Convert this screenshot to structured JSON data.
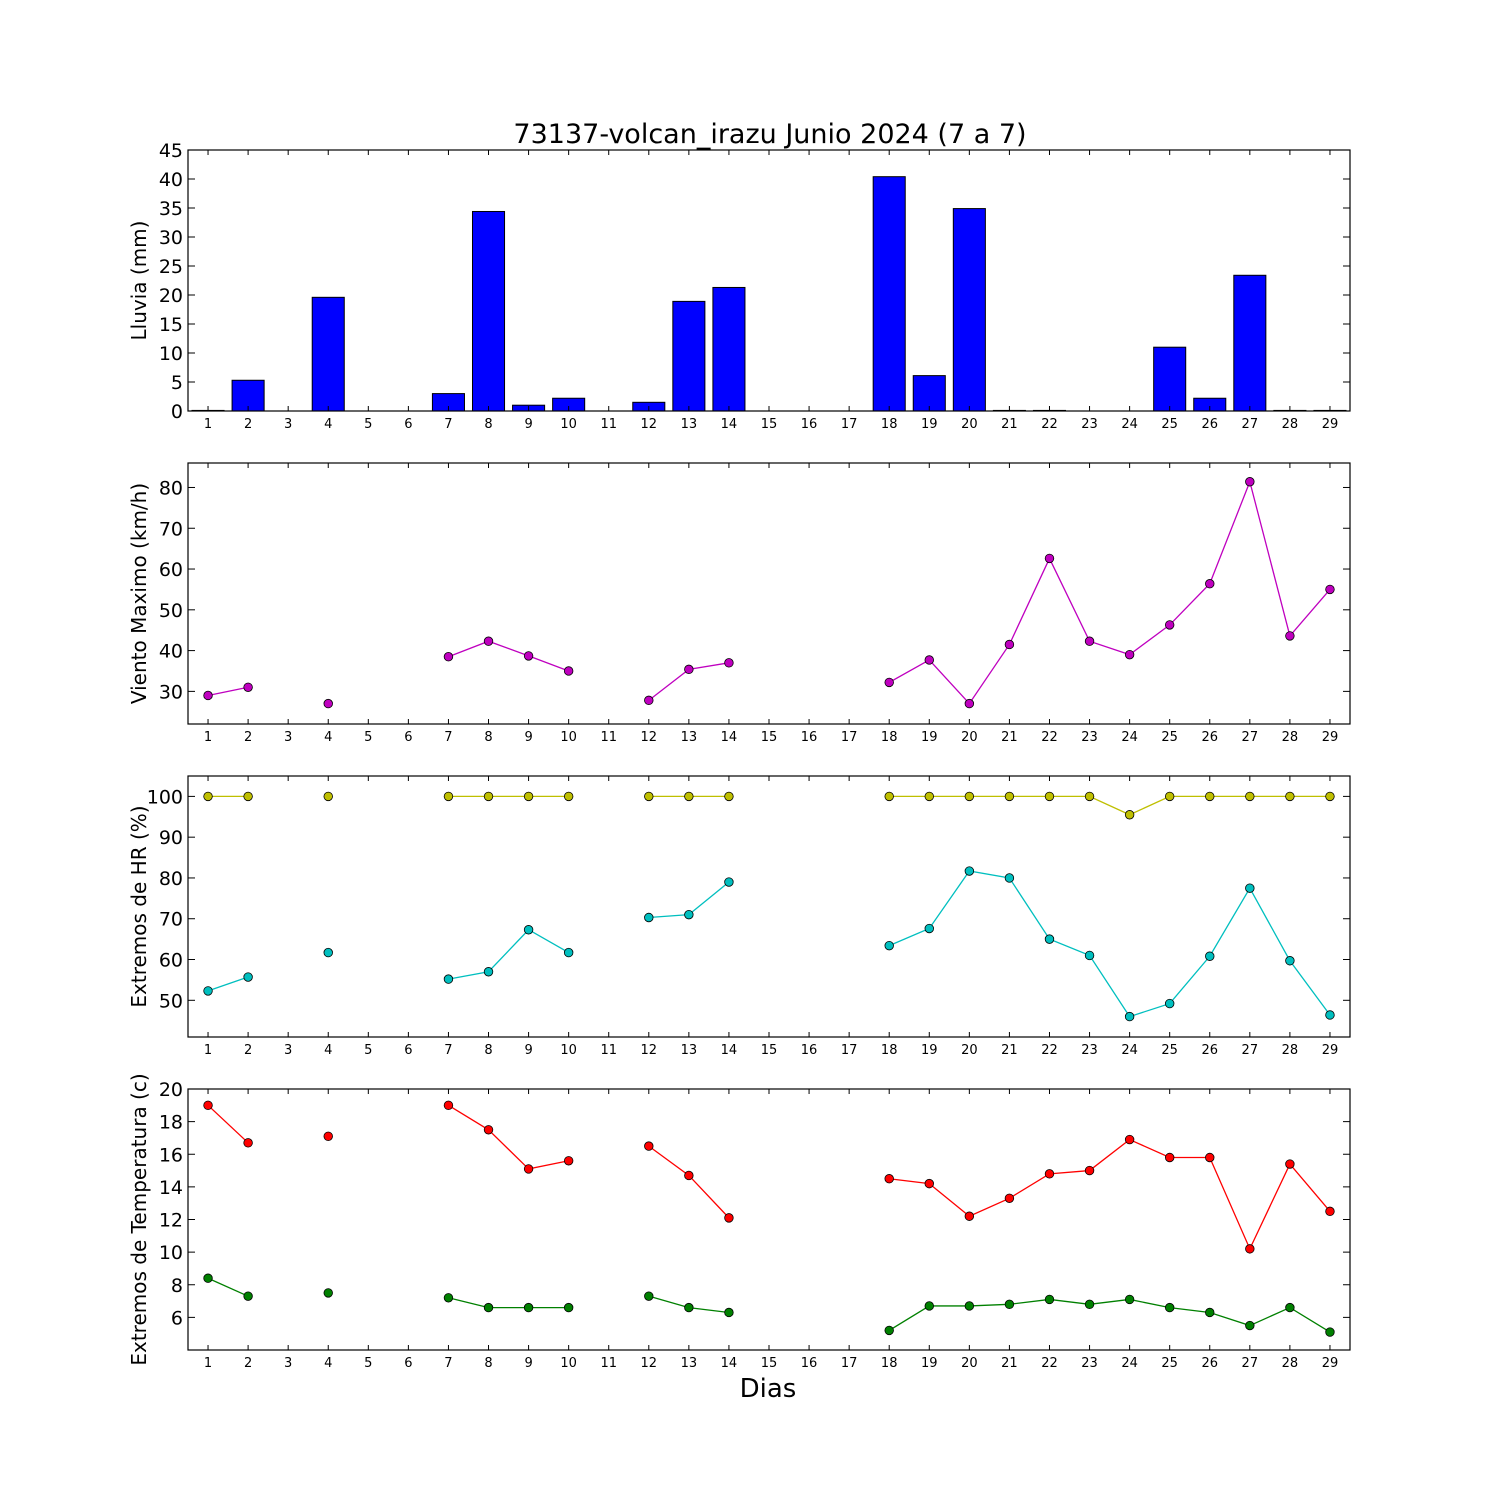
{
  "chart_data": {
    "type": "multi-panel",
    "title": "73137-volcan_irazu Junio 2024  (7 a 7)",
    "xlabel": "Dias",
    "x": [
      1,
      2,
      3,
      4,
      5,
      6,
      7,
      8,
      9,
      10,
      11,
      12,
      13,
      14,
      15,
      16,
      17,
      18,
      19,
      20,
      21,
      22,
      23,
      24,
      25,
      26,
      27,
      28,
      29
    ],
    "panels": [
      {
        "type": "bar",
        "ylabel": "Lluvia (mm)",
        "ylim": [
          0,
          45
        ],
        "yticks": [
          0,
          5,
          10,
          15,
          20,
          25,
          30,
          35,
          40,
          45
        ],
        "series": [
          {
            "color": "#0000ff",
            "values": [
              0.1,
              5.3,
              0,
              19.6,
              0,
              0,
              3.0,
              34.4,
              1.0,
              2.2,
              0,
              1.5,
              18.9,
              21.3,
              0,
              0,
              0,
              40.4,
              6.1,
              34.9,
              0.1,
              0.1,
              0,
              0,
              11.0,
              2.2,
              23.4,
              0.1,
              0.1
            ]
          }
        ]
      },
      {
        "type": "line",
        "ylabel": "Viento Maximo (km/h)",
        "ylim": [
          22,
          86
        ],
        "yticks": [
          30,
          40,
          50,
          60,
          70,
          80
        ],
        "series": [
          {
            "color": "#bf00bf",
            "values": [
              29,
              31,
              null,
              27,
              null,
              null,
              38.5,
              42.3,
              38.7,
              35,
              null,
              27.8,
              35.4,
              37,
              null,
              null,
              null,
              32.2,
              37.7,
              27,
              41.5,
              62.6,
              42.3,
              39,
              46.3,
              56.4,
              81.4,
              43.6,
              55
            ]
          }
        ]
      },
      {
        "type": "line",
        "ylabel": "Extremos de HR (%)",
        "ylim": [
          41,
          105
        ],
        "yticks": [
          50,
          60,
          70,
          80,
          90,
          100
        ],
        "series": [
          {
            "color": "#bfbf00",
            "values": [
              100,
              100,
              null,
              100,
              null,
              null,
              100,
              100,
              100,
              100,
              null,
              100,
              100,
              100,
              null,
              null,
              null,
              100,
              100,
              100,
              100,
              100,
              100,
              95.5,
              100,
              100,
              100,
              100,
              100
            ]
          },
          {
            "color": "#00bfbf",
            "values": [
              52.3,
              55.7,
              null,
              61.7,
              null,
              null,
              55.2,
              57,
              67.3,
              61.7,
              null,
              70.3,
              71,
              79,
              null,
              null,
              null,
              63.4,
              67.6,
              81.7,
              80,
              65,
              61,
              46,
              49.2,
              60.8,
              77.5,
              59.7,
              46.4
            ]
          }
        ]
      },
      {
        "type": "line",
        "ylabel": "Extremos de Temperatura (c)",
        "ylim": [
          4,
          20
        ],
        "yticks": [
          6,
          8,
          10,
          12,
          14,
          16,
          18,
          20
        ],
        "series": [
          {
            "color": "#ff0000",
            "values": [
              19,
              16.7,
              null,
              17.1,
              null,
              null,
              19,
              17.5,
              15.1,
              15.6,
              null,
              16.5,
              14.7,
              12.1,
              null,
              null,
              null,
              14.5,
              14.2,
              12.2,
              13.3,
              14.8,
              15,
              16.9,
              15.8,
              15.8,
              10.2,
              15.4,
              12.5
            ]
          },
          {
            "color": "#008000",
            "values": [
              8.4,
              7.3,
              null,
              7.5,
              null,
              null,
              7.2,
              6.6,
              6.6,
              6.6,
              null,
              7.3,
              6.6,
              6.3,
              null,
              null,
              null,
              5.2,
              6.7,
              6.7,
              6.8,
              7.1,
              6.8,
              7.1,
              6.6,
              6.3,
              5.5,
              6.6,
              5.1
            ]
          }
        ]
      }
    ]
  }
}
